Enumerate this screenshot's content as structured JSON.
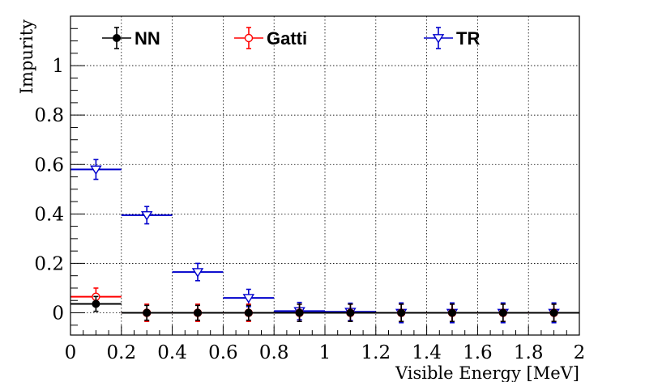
{
  "chart_data": {
    "type": "scatter",
    "xlabel": "Visible Energy [MeV]",
    "ylabel": "Impurity",
    "xlim": [
      0,
      2
    ],
    "ylim": [
      -0.09,
      1.2
    ],
    "x_ticks": [
      0,
      0.2,
      0.4,
      0.6,
      0.8,
      1,
      1.2,
      1.4,
      1.6,
      1.8,
      2
    ],
    "x_tick_labels": [
      "0",
      "0.2",
      "0.4",
      "0.6",
      "0.8",
      "1",
      "1.2",
      "1.4",
      "1.6",
      "1.8",
      "2"
    ],
    "y_ticks": [
      0,
      0.2,
      0.4,
      0.6,
      0.8,
      1
    ],
    "y_tick_labels": [
      "0",
      "0.2",
      "0.4",
      "0.6",
      "0.8",
      "1"
    ],
    "grid": true,
    "legend_position": "top",
    "series": [
      {
        "name": "NN",
        "color": "#000000",
        "marker": "filled-circle",
        "x": [
          0.1,
          0.3,
          0.5,
          0.7,
          0.9,
          1.1,
          1.3,
          1.5,
          1.7,
          1.9
        ],
        "x_err": [
          0.1,
          0.1,
          0.1,
          0.1,
          0.1,
          0.1,
          0.1,
          0.1,
          0.1,
          0.1
        ],
        "y": [
          0.036,
          0.0,
          0.0,
          0.0,
          0.0,
          0.0,
          0.0,
          0.0,
          0.0,
          0.0
        ],
        "y_err": [
          0.03,
          0.03,
          0.03,
          0.03,
          0.035,
          0.035,
          0.035,
          0.035,
          0.035,
          0.035
        ]
      },
      {
        "name": "Gatti",
        "color": "#ff0000",
        "marker": "open-circle",
        "x": [
          0.1,
          0.3,
          0.5,
          0.7,
          0.9,
          1.1,
          1.3,
          1.5,
          1.7,
          1.9
        ],
        "x_err": [
          0.1,
          0.1,
          0.1,
          0.1,
          0.1,
          0.1,
          0.1,
          0.1,
          0.1,
          0.1
        ],
        "y": [
          0.065,
          0.0,
          0.0,
          0.0,
          0.0,
          0.0,
          0.0,
          0.0,
          0.0,
          0.0
        ],
        "y_err": [
          0.035,
          0.035,
          0.035,
          0.035,
          0.035,
          0.035,
          0.035,
          0.035,
          0.035,
          0.035
        ]
      },
      {
        "name": "TR",
        "color": "#0000cc",
        "marker": "open-triangle-down",
        "x": [
          0.1,
          0.3,
          0.5,
          0.7,
          0.9,
          1.1,
          1.3,
          1.5,
          1.7,
          1.9
        ],
        "x_err": [
          0.1,
          0.1,
          0.1,
          0.1,
          0.1,
          0.1,
          0.1,
          0.1,
          0.1,
          0.1
        ],
        "y": [
          0.58,
          0.395,
          0.165,
          0.06,
          0.007,
          0.004,
          0.0,
          0.0,
          0.0,
          0.0
        ],
        "y_err": [
          0.04,
          0.035,
          0.035,
          0.035,
          0.035,
          0.035,
          0.04,
          0.04,
          0.04,
          0.04
        ]
      }
    ]
  }
}
